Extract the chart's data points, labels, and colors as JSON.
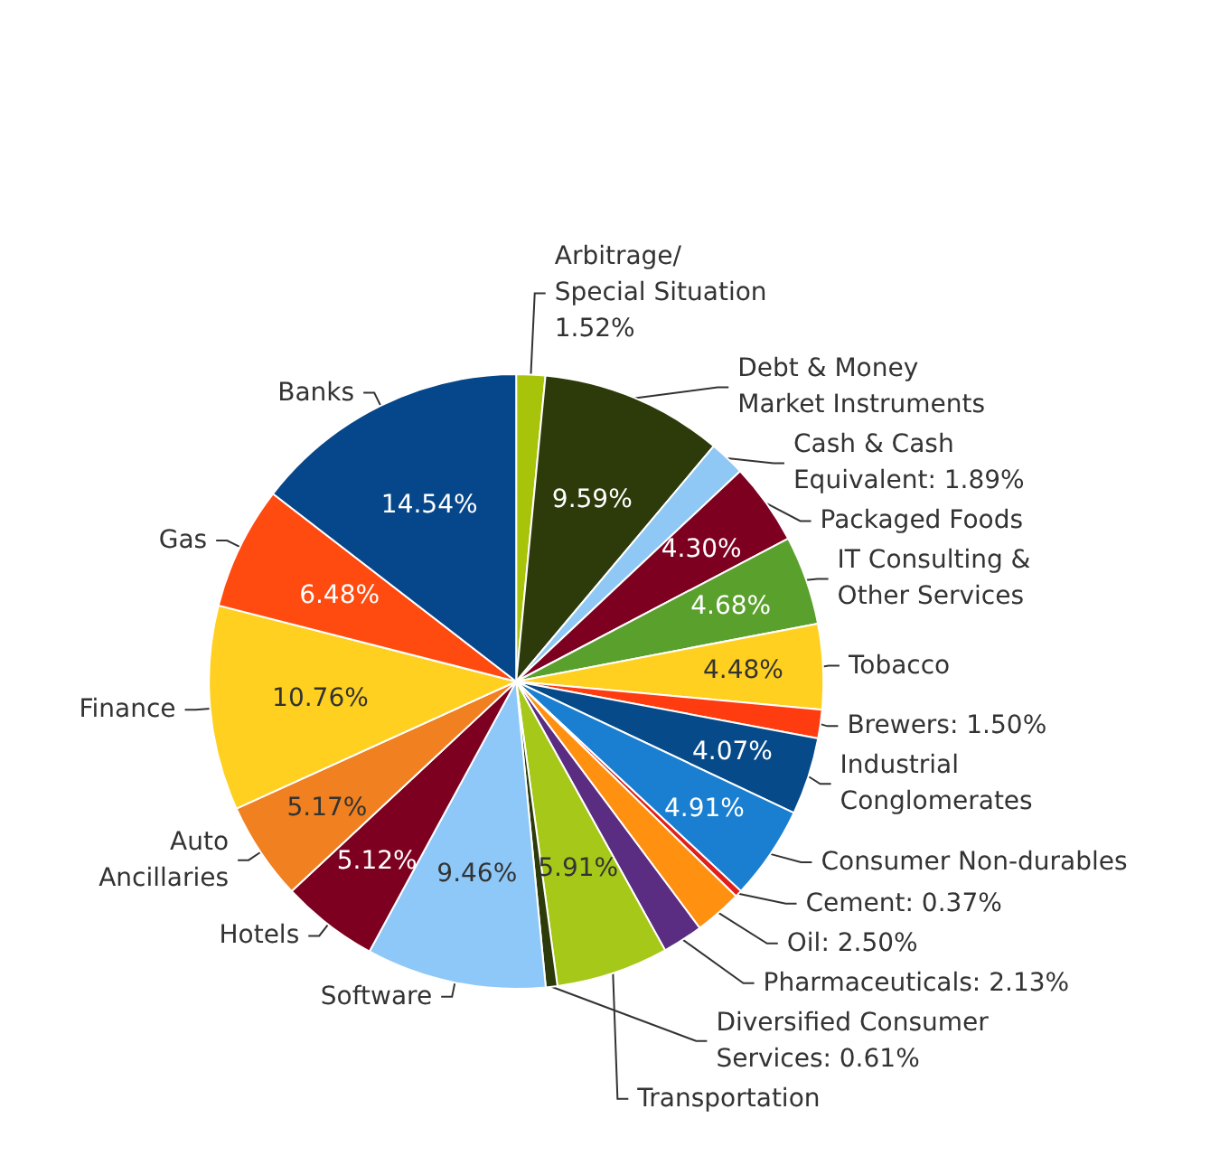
{
  "chart_data": {
    "type": "pie",
    "categories": [
      "Arbitrage/\nSpecial Situation",
      "Debt & Money\nMarket Instruments",
      "Cash & Cash\nEquivalent",
      "Packaged Foods",
      "IT Consulting &\nOther Services",
      "Tobacco",
      "Brewers",
      "Industrial\nConglomerates",
      "Consumer Non-durables",
      "Cement",
      "Oil",
      "Pharmaceuticals",
      "Transportation",
      "Diversified Consumer\nServices",
      "Software",
      "Hotels",
      "Auto\nAncillaries",
      "Finance",
      "Gas",
      "Banks"
    ],
    "values": [
      1.52,
      9.59,
      1.89,
      4.3,
      4.68,
      4.48,
      1.5,
      4.07,
      4.91,
      0.37,
      2.5,
      2.13,
      5.91,
      0.61,
      9.46,
      5.12,
      5.17,
      10.76,
      6.48,
      14.54
    ],
    "value_labels": [
      "1.52%",
      "9.59%",
      "1.89%",
      "4.30%",
      "4.68%",
      "4.48%",
      "1.50%",
      "4.07%",
      "4.91%",
      "0.37%",
      "2.50%",
      "2.13%",
      "5.91%",
      "0.61%",
      "9.46%",
      "5.12%",
      "5.17%",
      "10.76%",
      "6.48%",
      "14.54%"
    ],
    "colors": [
      "#a8c40a",
      "#2d3a0a",
      "#8fc8f5",
      "#7d0020",
      "#5aa02c",
      "#ffd020",
      "#ff3c10",
      "#074a8a",
      "#1a7fd0",
      "#e0201a",
      "#ff9010",
      "#5a2d82",
      "#a6c818",
      "#2d3a0a",
      "#8ec8f8",
      "#7d0020",
      "#f08020",
      "#ffd020",
      "#ff4a10",
      "#06468a"
    ],
    "legend": false
  }
}
